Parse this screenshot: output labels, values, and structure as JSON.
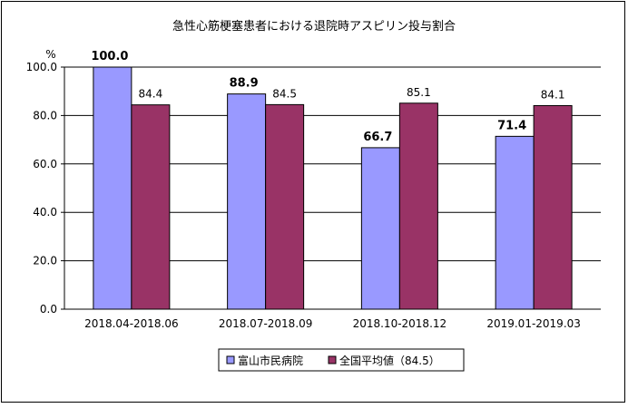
{
  "chart_data": {
    "type": "bar",
    "title": "急性心筋梗塞患者における退院時アスピリン投与割合",
    "ylabel": "%",
    "ylim": [
      0,
      100
    ],
    "yticks": [
      "0.0",
      "20.0",
      "40.0",
      "60.0",
      "80.0",
      "100.0"
    ],
    "grid": true,
    "legend_position": "bottom",
    "categories": [
      "2018.04-2018.06",
      "2018.07-2018.09",
      "2018.10-2018.12",
      "2019.01-2019.03"
    ],
    "series": [
      {
        "name": "富山市民病院",
        "color": "#9999ff",
        "values": [
          100.0,
          88.9,
          66.7,
          71.4
        ],
        "labels": [
          "100.0",
          "88.9",
          "66.7",
          "71.4"
        ]
      },
      {
        "name": "全国平均値（84.5）",
        "color": "#993366",
        "values": [
          84.4,
          84.5,
          85.1,
          84.1
        ],
        "labels": [
          "84.4",
          "84.5",
          "85.1",
          "84.1"
        ]
      }
    ]
  }
}
